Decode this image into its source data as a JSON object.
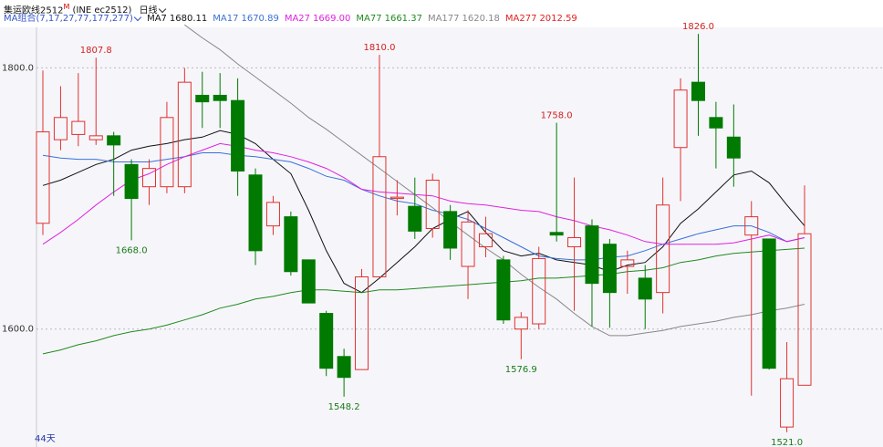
{
  "chart_data": {
    "type": "candlestick",
    "title": "集运欧线2512",
    "title_mark": "M",
    "symbol": "(INE ec2512)",
    "period": "日线",
    "indicator": "MA组合(7,17,27,77,177,277)",
    "bars_label": "44天",
    "up_color": "#e0302f",
    "down_color": "#007a00",
    "ylim": [
      1516,
      1838
    ],
    "yticks": [
      {
        "value": 1600,
        "label": "1600.0"
      },
      {
        "value": 1800,
        "label": "1800.0"
      }
    ],
    "grid": true,
    "open": [
      1681,
      1745,
      1749,
      1745,
      1748,
      1726,
      1709,
      1709,
      1709,
      1779,
      1779,
      1775,
      1718,
      1679,
      1686,
      1653,
      1612,
      1579,
      1569,
      1640,
      1700,
      1694,
      1677,
      1690,
      1648,
      1663,
      1653,
      1600,
      1604,
      1674,
      1663,
      1679,
      1665,
      1648,
      1639,
      1628,
      1739,
      1789,
      1762,
      1747,
      1672,
      1669,
      1525,
      1557
    ],
    "high": [
      1798,
      1786,
      1796,
      1807.8,
      1751,
      1730,
      1730,
      1774,
      1800,
      1797,
      1796,
      1792,
      1723,
      1702,
      1690,
      1653,
      1614,
      1585,
      1646,
      1810.0,
      1714,
      1716,
      1719,
      1695,
      1691,
      1686,
      1656,
      1613,
      1663,
      1758.0,
      1716,
      1684,
      1669,
      1660,
      1649,
      1716,
      1792,
      1826.0,
      1774,
      1772,
      1698,
      1669,
      1590,
      1710
    ],
    "low": [
      1672,
      1737,
      1740,
      1741,
      1702,
      1668.0,
      1695,
      1704,
      1704,
      1754,
      1754,
      1702,
      1649,
      1672,
      1641,
      1620,
      1564,
      1548.2,
      1569,
      1640,
      1687,
      1669,
      1670,
      1653,
      1623,
      1655,
      1604,
      1576.9,
      1600,
      1667,
      1614,
      1602,
      1601,
      1627,
      1600,
      1612,
      1698,
      1748,
      1723,
      1709,
      1549,
      1569,
      1521.0,
      1557
    ],
    "close": [
      1751,
      1762,
      1759,
      1748,
      1741,
      1700,
      1723,
      1762,
      1789,
      1774,
      1775,
      1721,
      1660,
      1697,
      1644,
      1620,
      1570,
      1563,
      1640,
      1732,
      1701,
      1675,
      1714,
      1662,
      1682,
      1673,
      1607,
      1609,
      1654,
      1672,
      1670,
      1635,
      1628,
      1653,
      1623,
      1695,
      1783,
      1775,
      1754,
      1731,
      1686,
      1570,
      1562,
      1673
    ],
    "high_labels": [
      null,
      null,
      null,
      "1807.8",
      null,
      null,
      null,
      null,
      null,
      null,
      null,
      null,
      null,
      null,
      null,
      null,
      null,
      null,
      null,
      "1810.0",
      null,
      null,
      null,
      null,
      null,
      null,
      null,
      null,
      null,
      "1758.0",
      null,
      null,
      null,
      null,
      null,
      null,
      null,
      "1826.0",
      null,
      null,
      null,
      null,
      null,
      null
    ],
    "low_labels": [
      null,
      null,
      null,
      null,
      null,
      "1668.0",
      null,
      null,
      null,
      null,
      null,
      null,
      null,
      null,
      null,
      null,
      null,
      "1548.2",
      null,
      null,
      null,
      null,
      null,
      null,
      null,
      null,
      null,
      "1576.9",
      null,
      null,
      null,
      null,
      null,
      null,
      null,
      null,
      null,
      null,
      null,
      null,
      null,
      null,
      "1521.0",
      null
    ],
    "series": [
      {
        "name": "MA7",
        "label": "1680.11",
        "color": "#111111",
        "values": [
          1710,
          1714,
          1720,
          1726,
          1730,
          1737,
          1740,
          1742,
          1745,
          1747,
          1752,
          1749,
          1742,
          1730,
          1719,
          1691,
          1660,
          1635,
          1628,
          1639,
          1651,
          1663,
          1677,
          1684,
          1690,
          1674,
          1660,
          1656,
          1658,
          1653,
          1651,
          1649,
          1644,
          1649,
          1651,
          1663,
          1681,
          1692,
          1705,
          1718,
          1721,
          1712,
          1695,
          1679
        ]
      },
      {
        "name": "MA17",
        "label": "1670.89",
        "color": "#3a6fd8",
        "values": [
          1733,
          1731,
          1730,
          1730,
          1728,
          1728,
          1728,
          1730,
          1732,
          1735,
          1735,
          1733,
          1732,
          1730,
          1728,
          1723,
          1717,
          1714,
          1707,
          1702,
          1698,
          1696,
          1691,
          1688,
          1684,
          1677,
          1670,
          1663,
          1656,
          1654,
          1653,
          1653,
          1655,
          1656,
          1660,
          1665,
          1669,
          1673,
          1676,
          1679,
          1679,
          1674,
          1667,
          1670
        ]
      },
      {
        "name": "MA27",
        "label": "1669.00",
        "color": "#e020e0",
        "values": [
          1665,
          1674,
          1684,
          1695,
          1705,
          1714,
          1719,
          1726,
          1732,
          1737,
          1742,
          1740,
          1737,
          1735,
          1732,
          1728,
          1723,
          1716,
          1707,
          1705,
          1704,
          1703,
          1702,
          1698,
          1696,
          1695,
          1693,
          1691,
          1690,
          1686,
          1683,
          1679,
          1676,
          1672,
          1667,
          1665,
          1665,
          1665,
          1665,
          1666,
          1669,
          1672,
          1667,
          1670
        ]
      },
      {
        "name": "MA77",
        "label": "1661.37",
        "color": "#1f8a1f",
        "values": [
          1581,
          1584,
          1588,
          1591,
          1595,
          1598,
          1600,
          1603,
          1607,
          1611,
          1616,
          1619,
          1623,
          1625,
          1628,
          1630,
          1630,
          1629,
          1628,
          1630,
          1630,
          1631,
          1632,
          1633,
          1634,
          1635,
          1636,
          1637,
          1639,
          1639,
          1640,
          1641,
          1642,
          1644,
          1645,
          1647,
          1651,
          1653,
          1656,
          1658,
          1659,
          1660,
          1661,
          1662
        ]
      },
      {
        "name": "MA177",
        "label": "1620.18",
        "color": "#888888",
        "values": [
          null,
          null,
          null,
          null,
          null,
          null,
          null,
          null,
          1833,
          1823,
          1814,
          1803,
          1793,
          1783,
          1773,
          1762,
          1753,
          1743,
          1733,
          1723,
          1713,
          1703,
          1693,
          1682,
          1672,
          1662,
          1653,
          1642,
          1632,
          1623,
          1612,
          1602,
          1595,
          1595,
          1597,
          1599,
          1602,
          1604,
          1606,
          1609,
          1611,
          1614,
          1616,
          1619
        ]
      },
      {
        "name": "MA277",
        "label": "2012.59",
        "color": "#e02020"
      }
    ]
  }
}
